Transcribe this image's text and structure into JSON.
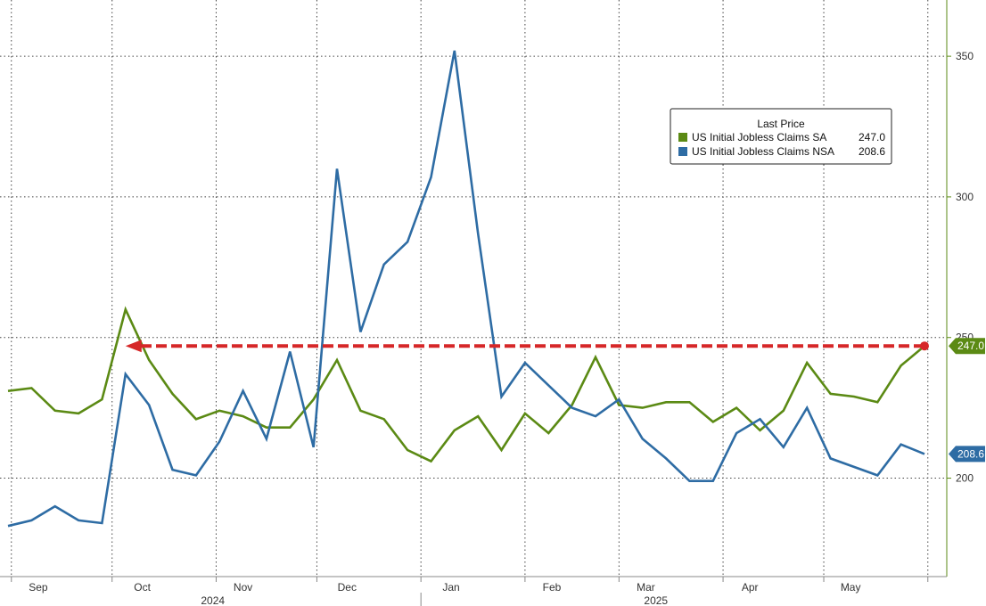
{
  "chart_data": {
    "type": "line",
    "x_start": "2024-08-31",
    "x_step_days": 7,
    "x_labels": [
      {
        "date": "2024-09-09",
        "label": "Sep"
      },
      {
        "date": "2024-10-10",
        "label": "Oct"
      },
      {
        "date": "2024-11-09",
        "label": "Nov"
      },
      {
        "date": "2024-12-10",
        "label": "Dec"
      },
      {
        "date": "2025-01-10",
        "label": "Jan"
      },
      {
        "date": "2025-02-09",
        "label": "Feb"
      },
      {
        "date": "2025-03-09",
        "label": "Mar"
      },
      {
        "date": "2025-04-09",
        "label": "Apr"
      },
      {
        "date": "2025-05-09",
        "label": "May"
      }
    ],
    "year_labels": [
      {
        "date": "2024-10-31",
        "label": "2024"
      },
      {
        "date": "2025-03-12",
        "label": "2025"
      }
    ],
    "ylim": [
      165,
      370
    ],
    "yticks": [
      200,
      250,
      300,
      350
    ],
    "y_tick_labels": [
      "200",
      "250",
      "300",
      "350"
    ],
    "grid": true,
    "legend_position": "top-right",
    "legend_title": "Last Price",
    "series": [
      {
        "name": "US Initial Jobless Claims SA",
        "last_value": "247.0",
        "color": "#5b8a14",
        "values": [
          231,
          232,
          224,
          223,
          228,
          260,
          242,
          230,
          221,
          224,
          222,
          218,
          218,
          228,
          242,
          224,
          221,
          210,
          206,
          217,
          222,
          210,
          223,
          216,
          226,
          243,
          226,
          225,
          227,
          227,
          220,
          225,
          217,
          224,
          241,
          230,
          229,
          227,
          240,
          247
        ]
      },
      {
        "name": "US Initial Jobless Claims NSA",
        "last_value": "208.6",
        "color": "#2e6ca4",
        "values": [
          183,
          185,
          190,
          185,
          184,
          237,
          226,
          203,
          201,
          213,
          231,
          214,
          245,
          211,
          310,
          252,
          276,
          284,
          307,
          352,
          287,
          229,
          241,
          233,
          225,
          222,
          228,
          214,
          207,
          199,
          199,
          216,
          221,
          211,
          225,
          207,
          204,
          201,
          212,
          208.6
        ]
      }
    ],
    "reference_arrow": {
      "from_date": "2025-05-31",
      "to_date": "2024-10-05",
      "value": 247.0,
      "color": "#d62728"
    }
  }
}
